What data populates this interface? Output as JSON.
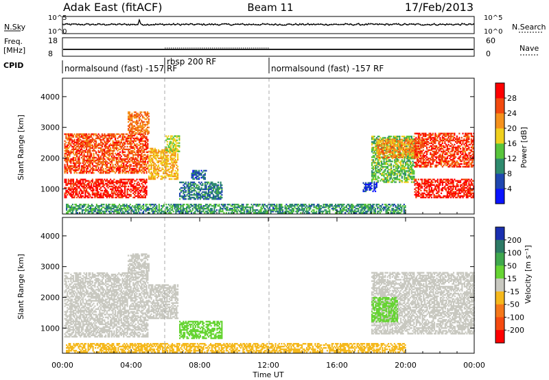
{
  "header": {
    "station": "Adak East (fitACF)",
    "beam": "Beam 11",
    "date": "17/Feb/2013"
  },
  "top_panels": {
    "nsky_label": "N.Sky",
    "nsky_ticks": [
      "10^5",
      "10^0"
    ],
    "nsearch_label": "N.Search",
    "nsearch_ticks": [
      "10^5",
      "10^0"
    ],
    "freq_label": "Freq.",
    "freq_unit": "[MHz]",
    "freq_ticks": [
      "18",
      "8"
    ],
    "nave_label": "Nave",
    "nave_ticks": [
      "60",
      "0"
    ],
    "cpid_label": "CPID",
    "cpid_segments": [
      {
        "name": "normalsound (fast) -157 RF",
        "start_hour": 0.0,
        "end_hour": 6.0
      },
      {
        "name": "rbsp 200 RF",
        "start_hour": 6.0,
        "end_hour": 12.0
      },
      {
        "name": "normalsound (fast) -157 RF",
        "start_hour": 12.0,
        "end_hour": 24.0
      }
    ]
  },
  "chart_data": [
    {
      "type": "heatmap",
      "name": "power",
      "ylabel": "Slant Range [km]",
      "yticks": [
        1000,
        2000,
        3000,
        4000
      ],
      "ylim": [
        180,
        4600
      ],
      "colorbar_label": "Power [dB]",
      "colorbar_ticks": [
        4,
        8,
        12,
        16,
        20,
        24,
        28
      ],
      "colorbar_range": [
        0,
        32
      ],
      "colors": [
        "#0a14ff",
        "#1f47b0",
        "#2e8a6e",
        "#58c43b",
        "#f0d01e",
        "#f5911c",
        "#f24a0f",
        "#ff0000"
      ],
      "echo_regions": [
        {
          "t0": 0.1,
          "t1": 4.9,
          "r0": 700,
          "r1": 1300,
          "value": 29
        },
        {
          "t0": 0.1,
          "t1": 5.0,
          "r0": 1500,
          "r1": 2800,
          "value": 26
        },
        {
          "t0": 3.8,
          "t1": 5.0,
          "r0": 2800,
          "r1": 3500,
          "value": 24
        },
        {
          "t0": 5.0,
          "t1": 6.7,
          "r0": 1300,
          "r1": 2300,
          "value": 20
        },
        {
          "t0": 6.0,
          "t1": 6.8,
          "r0": 2200,
          "r1": 2700,
          "value": 16
        },
        {
          "t0": 6.8,
          "t1": 9.3,
          "r0": 650,
          "r1": 1200,
          "value": 9
        },
        {
          "t0": 7.5,
          "t1": 8.4,
          "r0": 1300,
          "r1": 1600,
          "value": 7
        },
        {
          "t0": 0.2,
          "t1": 20.0,
          "r0": 200,
          "r1": 500,
          "value": 11
        },
        {
          "t0": 18.0,
          "t1": 20.5,
          "r0": 1200,
          "r1": 2700,
          "value": 14
        },
        {
          "t0": 18.3,
          "t1": 21.0,
          "r0": 2000,
          "r1": 2600,
          "value": 22
        },
        {
          "t0": 20.5,
          "t1": 24.0,
          "r0": 700,
          "r1": 1300,
          "value": 29
        },
        {
          "t0": 20.5,
          "t1": 24.0,
          "r0": 1700,
          "r1": 2800,
          "value": 27
        },
        {
          "t0": 17.5,
          "t1": 18.3,
          "r0": 900,
          "r1": 1200,
          "value": 5
        }
      ]
    },
    {
      "type": "heatmap",
      "name": "velocity",
      "ylabel": "Slant Range [km]",
      "yticks": [
        1000,
        2000,
        3000,
        4000
      ],
      "ylim": [
        180,
        4600
      ],
      "colorbar_label": "Velocity [m s⁻¹]",
      "colorbar_ticks": [
        200,
        100,
        50,
        15,
        -15,
        -50,
        -100,
        -200
      ],
      "colors": [
        "#1a2fb0",
        "#2d7a66",
        "#3fa84d",
        "#66d433",
        "#c8c8c0",
        "#f5b81c",
        "#f5781a",
        "#f54a10",
        "#ff0000"
      ],
      "echo_regions": [
        {
          "t0": 0.1,
          "t1": 5.0,
          "r0": 700,
          "r1": 2800,
          "value": 0
        },
        {
          "t0": 3.8,
          "t1": 5.0,
          "r0": 2800,
          "r1": 3400,
          "value": 0
        },
        {
          "t0": 5.0,
          "t1": 6.7,
          "r0": 1300,
          "r1": 2400,
          "value": 0
        },
        {
          "t0": 6.8,
          "t1": 9.3,
          "r0": 650,
          "r1": 1200,
          "value": 30
        },
        {
          "t0": 0.2,
          "t1": 20.0,
          "r0": 200,
          "r1": 500,
          "value": -30
        },
        {
          "t0": 18.0,
          "t1": 24.0,
          "r0": 800,
          "r1": 2800,
          "value": 0
        },
        {
          "t0": 18.0,
          "t1": 19.5,
          "r0": 1200,
          "r1": 2000,
          "value": 30
        }
      ]
    }
  ],
  "x_axis": {
    "ticks": [
      "00:00",
      "04:00",
      "08:00",
      "12:00",
      "16:00",
      "20:00",
      "00:00"
    ],
    "tick_hours": [
      0,
      4,
      8,
      12,
      16,
      20,
      24
    ],
    "label": "Time UT"
  }
}
